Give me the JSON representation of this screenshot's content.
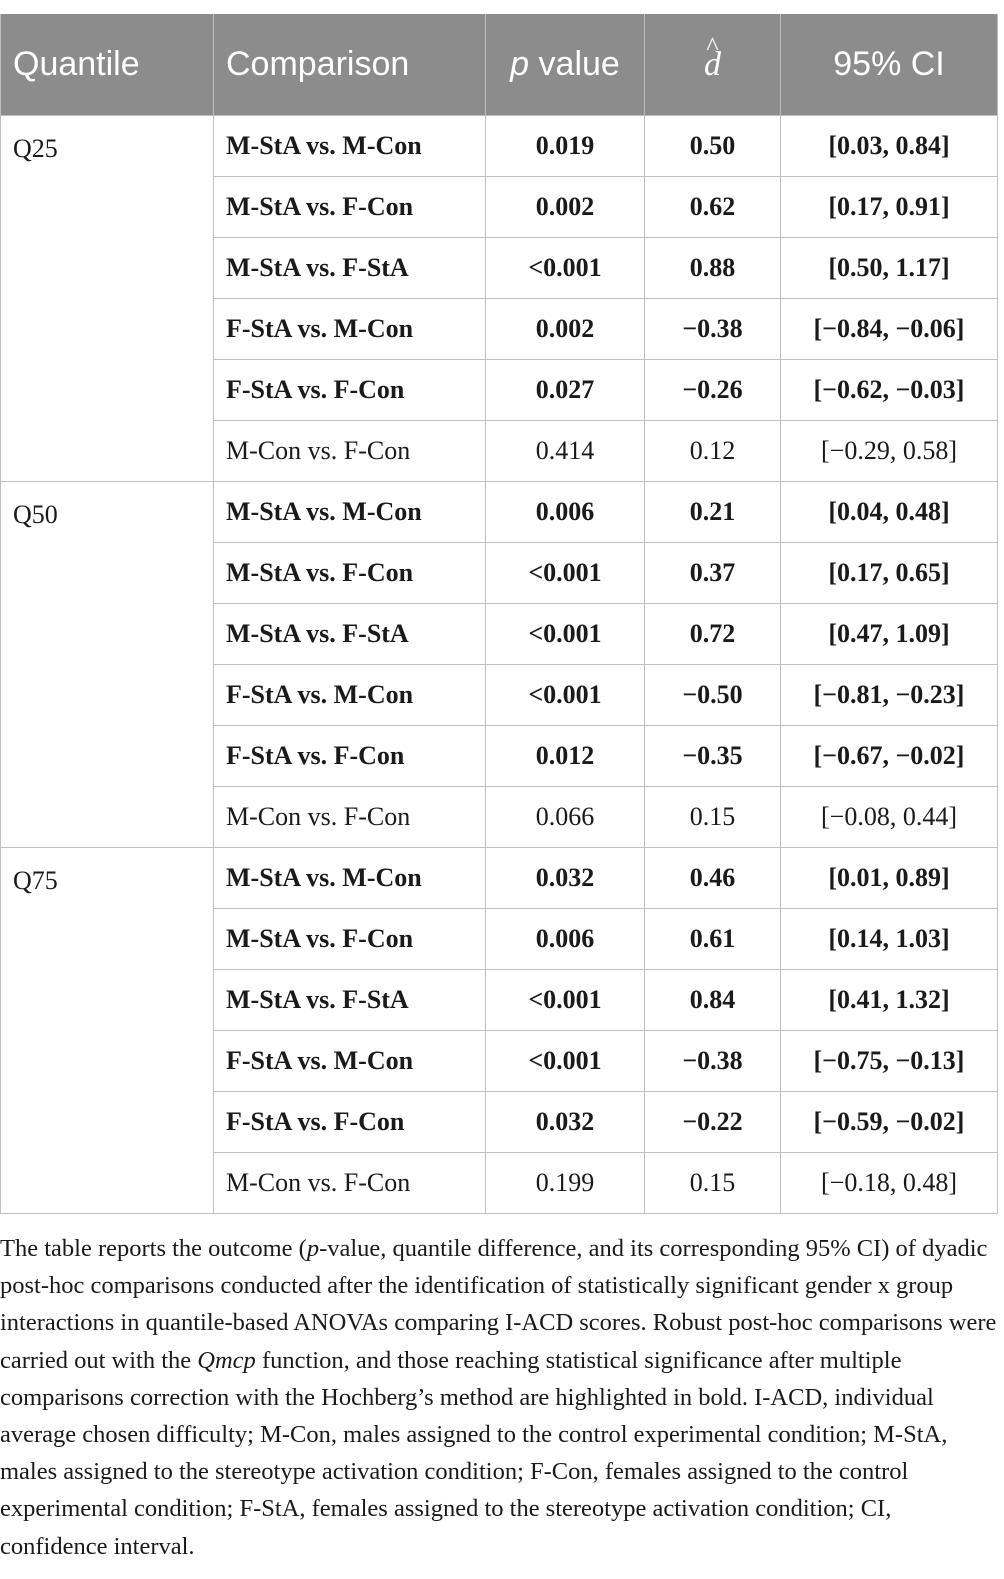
{
  "header": {
    "quantile": "Quantile",
    "comparison": "Comparison",
    "p_italic": "p",
    "p_rest": " value",
    "d_letter": "d",
    "d_hat": "^",
    "ci": "95% CI"
  },
  "groups": [
    {
      "quantile": "Q25",
      "rows": [
        {
          "comparison": "M-StA vs. M-Con",
          "p": "0.019",
          "d": "0.50",
          "ci": "[0.03, 0.84]",
          "bold": true
        },
        {
          "comparison": "M-StA vs. F-Con",
          "p": "0.002",
          "d": "0.62",
          "ci": "[0.17, 0.91]",
          "bold": true
        },
        {
          "comparison": "M-StA vs. F-StA",
          "p": "<0.001",
          "d": "0.88",
          "ci": "[0.50, 1.17]",
          "bold": true
        },
        {
          "comparison": "F-StA vs. M-Con",
          "p": "0.002",
          "d": "−0.38",
          "ci": "[−0.84, −0.06]",
          "bold": true
        },
        {
          "comparison": "F-StA vs. F-Con",
          "p": "0.027",
          "d": "−0.26",
          "ci": "[−0.62, −0.03]",
          "bold": true
        },
        {
          "comparison": "M-Con vs. F-Con",
          "p": "0.414",
          "d": "0.12",
          "ci": "[−0.29, 0.58]",
          "bold": false
        }
      ]
    },
    {
      "quantile": "Q50",
      "rows": [
        {
          "comparison": "M-StA vs. M-Con",
          "p": "0.006",
          "d": "0.21",
          "ci": "[0.04, 0.48]",
          "bold": true
        },
        {
          "comparison": "M-StA vs. F-Con",
          "p": "<0.001",
          "d": "0.37",
          "ci": "[0.17, 0.65]",
          "bold": true
        },
        {
          "comparison": "M-StA vs. F-StA",
          "p": "<0.001",
          "d": "0.72",
          "ci": "[0.47, 1.09]",
          "bold": true
        },
        {
          "comparison": "F-StA vs. M-Con",
          "p": "<0.001",
          "d": "−0.50",
          "ci": "[−0.81, −0.23]",
          "bold": true
        },
        {
          "comparison": "F-StA vs. F-Con",
          "p": "0.012",
          "d": "−0.35",
          "ci": "[−0.67, −0.02]",
          "bold": true
        },
        {
          "comparison": "M-Con vs. F-Con",
          "p": "0.066",
          "d": "0.15",
          "ci": "[−0.08, 0.44]",
          "bold": false
        }
      ]
    },
    {
      "quantile": "Q75",
      "rows": [
        {
          "comparison": "M-StA vs. M-Con",
          "p": "0.032",
          "d": "0.46",
          "ci": "[0.01, 0.89]",
          "bold": true
        },
        {
          "comparison": "M-StA vs. F-Con",
          "p": "0.006",
          "d": "0.61",
          "ci": "[0.14, 1.03]",
          "bold": true
        },
        {
          "comparison": "M-StA vs. F-StA",
          "p": "<0.001",
          "d": "0.84",
          "ci": "[0.41, 1.32]",
          "bold": true
        },
        {
          "comparison": "F-StA vs. M-Con",
          "p": "<0.001",
          "d": "−0.38",
          "ci": "[−0.75, −0.13]",
          "bold": true
        },
        {
          "comparison": "F-StA vs. F-Con",
          "p": "0.032",
          "d": "−0.22",
          "ci": "[−0.59, −0.02]",
          "bold": true
        },
        {
          "comparison": "M-Con vs. F-Con",
          "p": "0.199",
          "d": "0.15",
          "ci": "[−0.18, 0.48]",
          "bold": false
        }
      ]
    }
  ],
  "footnote": {
    "part1": "The table reports the outcome (",
    "p_italic": "p",
    "part2": "-value, quantile difference, and its corresponding 95% CI) of dyadic post-hoc comparisons conducted after the identification of statistically significant gender x group interactions in quantile-based ANOVAs comparing I-ACD scores. Robust post-hoc comparisons were carried out with the ",
    "qmcp": "Qmcp",
    "part3": " function, and those reaching statistical significance after multiple comparisons correction with the Hochberg’s method are highlighted in bold. I-ACD, individual average chosen difficulty; M-Con, males assigned to the control experimental condition; M-StA, males assigned to the stereotype activation condition; F-Con, females assigned to the control experimental condition; F-StA, females assigned to the stereotype activation condition; CI, confidence interval."
  }
}
